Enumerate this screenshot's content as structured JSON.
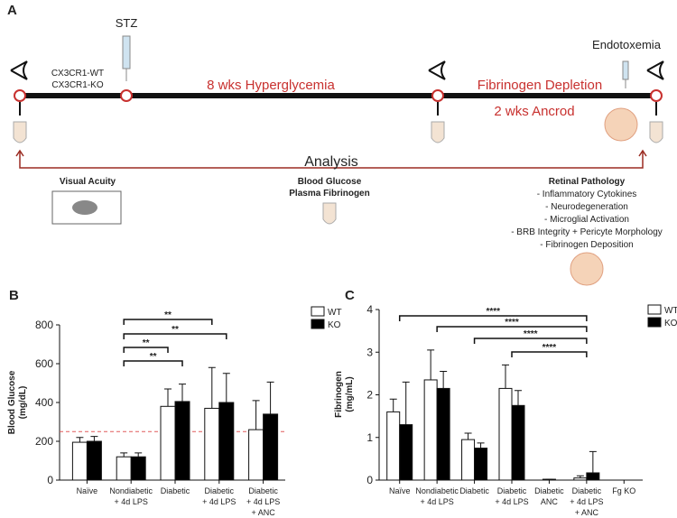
{
  "diagram": {
    "panel_label": "A",
    "stz": "STZ",
    "groups": [
      "CX3CR1-WT",
      "CX3CR1-KO"
    ],
    "phase1": "8 wks Hyperglycemia",
    "phase2": "Fibrinogen Depletion",
    "phase2_detail": "2 wks Ancrod",
    "endotoxemia": "Endotoxemia",
    "analysis": "Analysis",
    "visual_acuity": "Visual Acuity",
    "blood": [
      "Blood Glucose",
      "Plasma Fibrinogen"
    ],
    "retina_title": "Retinal Pathology",
    "retina_items": [
      "- Inflammatory Cytokines",
      "- Neurodegeneration",
      "- Microglial Activation",
      "- BRB Integrity + Pericyte Morphology",
      "- Fibrinogen Deposition"
    ]
  },
  "chart_data": [
    {
      "type": "bar",
      "panel_label": "B",
      "ylabel": "Blood Glucose\n(mg/dL)",
      "categories": [
        "Naïve",
        "Nondiabetic\n+ 4d LPS",
        "Diabetic",
        "Diabetic\n+ 4d LPS",
        "Diabetic\n+ 4d LPS\n+ ANC"
      ],
      "series": [
        {
          "name": "WT",
          "color": "#ffffff",
          "values": [
            195,
            120,
            380,
            370,
            260
          ],
          "errors": [
            25,
            20,
            90,
            210,
            150
          ]
        },
        {
          "name": "KO",
          "color": "#000000",
          "values": [
            200,
            120,
            405,
            400,
            340
          ],
          "errors": [
            25,
            20,
            90,
            150,
            165
          ]
        }
      ],
      "ylim": [
        0,
        800
      ],
      "yticks": [
        0,
        200,
        400,
        600,
        800
      ],
      "reference_line": 250,
      "annotations": [
        "**",
        "**",
        "**",
        "**"
      ]
    },
    {
      "type": "bar",
      "panel_label": "C",
      "ylabel": "Fibrinogen\n(mg/mL)",
      "categories": [
        "Naïve",
        "Nondiabetic\n+ 4d LPS",
        "Diabetic",
        "Diabetic\n+ 4d LPS",
        "Diabetic\nANC",
        "Diabetic\n+ 4d LPS\n+ ANC",
        "Fg KO"
      ],
      "series": [
        {
          "name": "WT",
          "color": "#ffffff",
          "values": [
            1.6,
            2.35,
            0.95,
            2.15,
            0.02,
            0.05,
            0
          ],
          "errors": [
            0.3,
            0.7,
            0.15,
            0.55,
            0,
            0.05,
            0
          ]
        },
        {
          "name": "KO",
          "color": "#000000",
          "values": [
            1.3,
            2.15,
            0.75,
            1.75,
            null,
            0.17,
            null
          ],
          "errors": [
            1,
            0.4,
            0.12,
            0.35,
            null,
            0.5,
            null
          ]
        }
      ],
      "ylim": [
        0,
        4
      ],
      "yticks": [
        0,
        1,
        2,
        3,
        4
      ],
      "annotations": [
        "****",
        "****",
        "****",
        "****"
      ]
    }
  ]
}
